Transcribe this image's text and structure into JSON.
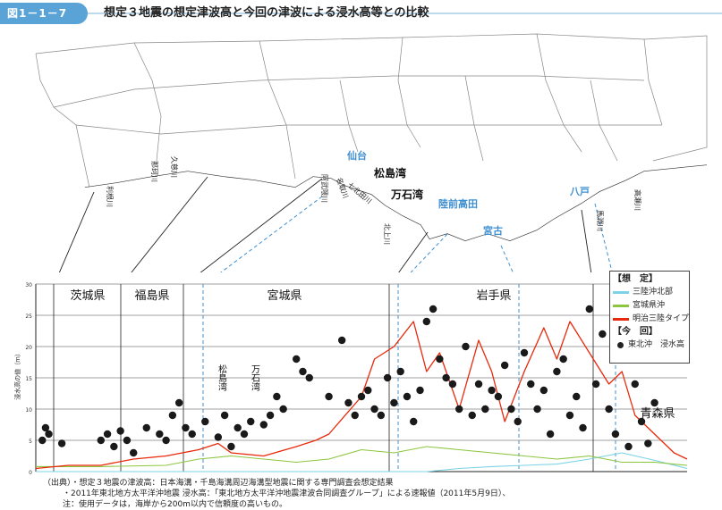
{
  "header": {
    "figure_number": "図1－1－7",
    "title": "想定３地震の想定津波高と今回の津波による浸水高等との比較"
  },
  "map": {
    "cities": [
      "仙台",
      "陸前高田",
      "宮古",
      "八戸"
    ],
    "places": [
      "松島湾",
      "万石湾"
    ],
    "rivers": {
      "tone": "利根川",
      "naka": "那珂川",
      "kuji": "久慈川",
      "abukuma": "阿武隈川",
      "natori": "名取川",
      "nanakita": "七北田川",
      "kitakami": "北上川",
      "mabechi": "馬淵川",
      "takase": "高瀬川"
    }
  },
  "chart_data": {
    "type": "line",
    "ylabel": "浸水高の値（m）",
    "ylim": [
      0,
      30
    ],
    "yticks": [
      0,
      5,
      10,
      15,
      20,
      25,
      30
    ],
    "grid": true,
    "legend_placement": "top-right",
    "regions": [
      "茨城県",
      "福島県",
      "宮城県",
      "岩手県",
      "青森県"
    ],
    "chart_annotations": [
      "松島湾",
      "万石湾"
    ],
    "legend": {
      "assumed_heading": "【想　定】",
      "current_heading": "【今　回】",
      "series_names": [
        "三陸沖北部",
        "宮城県沖",
        "明治三陸タイプ"
      ],
      "points_name": "東北沖　浸水高"
    },
    "series_colors": [
      "#7dd3e6",
      "#8cc63f",
      "#e8290b"
    ],
    "dot_color": "#1a1a1a",
    "series": [
      {
        "name": "三陸沖北部",
        "x": [
          0,
          45,
          50,
          55,
          60,
          65,
          70,
          75,
          80,
          85,
          90,
          95,
          100
        ],
        "values": [
          0,
          0,
          0,
          0,
          0,
          0.5,
          0.8,
          1.0,
          1.2,
          2.0,
          3.0,
          1.8,
          0.5
        ]
      },
      {
        "name": "宮城県沖",
        "x": [
          0,
          10,
          20,
          25,
          30,
          35,
          40,
          45,
          50,
          55,
          60,
          65,
          70,
          75,
          80,
          85,
          90,
          95,
          100
        ],
        "values": [
          0.8,
          0.8,
          1.0,
          2.0,
          2.5,
          2.0,
          1.5,
          2.0,
          3.5,
          3.0,
          4.0,
          3.5,
          3.0,
          2.5,
          2.0,
          2.5,
          1.5,
          1.5,
          1.0
        ]
      },
      {
        "name": "明治三陸タイプ",
        "x": [
          0,
          5,
          10,
          15,
          20,
          25,
          28,
          30,
          35,
          40,
          43,
          45,
          50,
          52,
          55,
          58,
          60,
          62,
          65,
          68,
          70,
          72,
          75,
          78,
          80,
          82,
          85,
          88,
          90,
          92,
          95,
          98,
          100
        ],
        "values": [
          0.5,
          1.0,
          1.0,
          2.0,
          2.5,
          3.5,
          4.5,
          3.0,
          2.5,
          4.0,
          5.0,
          6.0,
          12.0,
          18.0,
          20.0,
          24.0,
          16.0,
          19.0,
          10.0,
          21.0,
          16.0,
          8.0,
          16.0,
          23.0,
          18.0,
          24.0,
          19.0,
          14.0,
          16.0,
          9.0,
          6.0,
          3.0,
          2.0
        ]
      }
    ],
    "points": {
      "x": [
        1,
        1.5,
        2,
        4,
        10,
        11,
        12,
        13,
        14,
        15,
        17,
        19,
        20,
        21,
        22,
        23,
        24,
        26,
        28,
        29,
        30,
        31,
        32,
        33,
        35,
        36,
        37,
        38,
        40,
        41,
        42,
        45,
        47,
        48,
        49,
        50,
        51,
        52,
        53,
        54,
        55,
        56,
        57,
        58,
        59,
        60,
        61,
        62,
        63,
        64,
        65,
        66,
        67,
        68,
        69,
        70,
        71,
        72,
        73,
        74,
        75,
        76,
        77,
        78,
        79,
        80,
        81,
        82,
        83,
        84,
        85,
        86,
        87,
        88,
        89,
        90,
        91,
        92,
        93,
        94,
        95
      ],
      "values": [
        5,
        7,
        6,
        4.5,
        5,
        6,
        4,
        6.5,
        5,
        3,
        7,
        6,
        5,
        9,
        11,
        7,
        6,
        8,
        5.5,
        9,
        4,
        7,
        6,
        8,
        7.5,
        9,
        12,
        10,
        18,
        16,
        15,
        12,
        21,
        11,
        9,
        12,
        13,
        10,
        9,
        15,
        11,
        16,
        12,
        8,
        13,
        24,
        26,
        18,
        15,
        14,
        10,
        20,
        9,
        14,
        10,
        13,
        12,
        17,
        10,
        8,
        19,
        14,
        10,
        13,
        6,
        16,
        18,
        9,
        12,
        7,
        26,
        14,
        22,
        10,
        6,
        21,
        4,
        14,
        8,
        4.5,
        11
      ]
    }
  },
  "source": {
    "line1": "（出典）・想定３地震の津波高：日本海溝・千島海溝周辺海溝型地震に関する専門調査会想定結果",
    "line2": "・2011年東北地方太平洋沖地震 浸水高：「東北地方太平洋沖地震津波合同調査グループ」による速報値（2011年5月9日）、",
    "line3": "注：使用データは，海岸から200m以内で信頼度の高いもの。"
  }
}
